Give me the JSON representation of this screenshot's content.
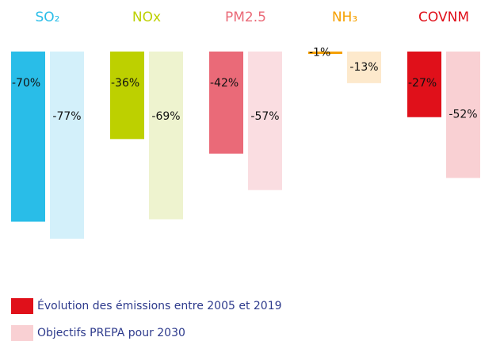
{
  "chart_data": {
    "type": "bar",
    "categories": [
      "SO₂",
      "NOx",
      "PM2.5",
      "NH₃",
      "COVNM"
    ],
    "category_colors": [
      "#29bde8",
      "#bdd000",
      "#ea6a78",
      "#f5a000",
      "#e0101a"
    ],
    "series": [
      {
        "name": "Évolution des émissions entre 2005 et 2019",
        "color": "#e0101a",
        "colors": [
          "#29bde8",
          "#bdd000",
          "#ea6a78",
          "#f5a000",
          "#e0101a"
        ],
        "values": [
          -70,
          -36,
          -42,
          -1,
          -27
        ],
        "value_labels": [
          "-70%",
          "-36%",
          "-42%",
          "-1%",
          "-27%"
        ]
      },
      {
        "name": "Objectifs PREPA pour 2030",
        "color": "#f9d0d3",
        "colors": [
          "#d3f0fa",
          "#eef3cf",
          "#fadde1",
          "#fde9cc",
          "#f9d0d3"
        ],
        "values": [
          -77,
          -69,
          -57,
          -13,
          -52
        ],
        "value_labels": [
          "-77%",
          "-69%",
          "-57%",
          "-13%",
          "-52%"
        ]
      }
    ]
  }
}
